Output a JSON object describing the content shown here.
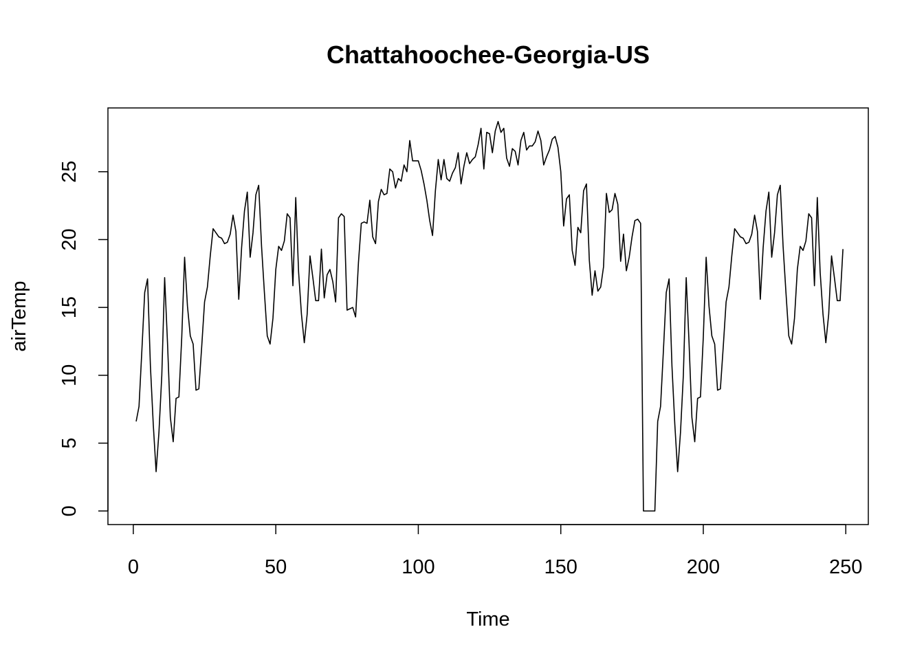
{
  "chart_data": {
    "type": "line",
    "title": "Chattahoochee-Georgia-US",
    "xlabel": "Time",
    "ylabel": "airTemp",
    "xlim": [
      -8.9,
      257.9
    ],
    "ylim": [
      -1.0,
      29.7
    ],
    "xticks": [
      0,
      50,
      100,
      150,
      200,
      250
    ],
    "yticks": [
      0,
      5,
      10,
      15,
      20,
      25
    ],
    "grid": false,
    "line_color": "#000000",
    "x_start": 1,
    "series": [
      {
        "values": [
          6.6,
          7.7,
          11.8,
          16.1,
          17.1,
          10.7,
          6.4,
          2.9,
          5.8,
          10.0,
          17.2,
          12.4,
          6.9,
          5.1,
          8.3,
          8.4,
          12.8,
          18.7,
          15.1,
          12.9,
          12.3,
          8.9,
          9.0,
          12.1,
          15.4,
          16.5,
          18.8,
          20.8,
          20.5,
          20.2,
          20.1,
          19.7,
          19.8,
          20.4,
          21.8,
          20.6,
          15.6,
          19.4,
          22.1,
          23.5,
          18.7,
          20.5,
          23.3,
          24.0,
          19.5,
          16.1,
          12.9,
          12.3,
          14.2,
          17.8,
          19.5,
          19.2,
          19.9,
          21.9,
          21.6,
          16.6,
          23.1,
          17.6,
          14.5,
          12.4,
          14.5,
          18.8,
          17.2,
          15.5,
          15.5,
          19.3,
          15.7,
          17.4,
          17.8,
          16.9,
          15.4,
          21.6,
          21.9,
          21.7,
          14.8,
          14.9,
          15.0,
          14.3,
          18.3,
          21.2,
          21.3,
          21.2,
          22.9,
          20.2,
          19.7,
          22.8,
          23.7,
          23.3,
          23.4,
          25.2,
          25.0,
          23.8,
          24.5,
          24.3,
          25.5,
          25.0,
          27.3,
          25.8,
          25.8,
          25.8,
          25.1,
          24.1,
          22.9,
          21.4,
          20.3,
          23.6,
          25.9,
          24.4,
          25.9,
          24.5,
          24.3,
          24.9,
          25.3,
          26.4,
          24.1,
          25.4,
          26.4,
          25.6,
          25.9,
          26.1,
          27.0,
          28.2,
          25.2,
          27.9,
          27.8,
          26.4,
          28.0,
          28.7,
          27.9,
          28.2,
          26.0,
          25.4,
          26.7,
          26.5,
          25.5,
          27.3,
          27.9,
          26.6,
          26.9,
          26.9,
          27.2,
          28.0,
          27.3,
          25.5,
          26.1,
          26.6,
          27.4,
          27.6,
          26.8,
          25.0,
          21.0,
          23.0,
          23.3,
          19.2,
          18.1,
          20.9,
          20.5,
          23.6,
          24.1,
          18.5,
          15.9,
          17.7,
          16.2,
          16.5,
          18.0,
          23.4,
          22.0,
          22.2,
          23.4,
          22.6,
          18.4,
          20.4,
          17.7,
          18.7,
          20.2,
          21.4,
          21.5,
          21.2,
          0.0,
          0.0,
          0.0,
          0.0,
          0.0,
          6.6,
          7.7,
          11.8,
          16.1,
          17.1,
          10.7,
          6.4,
          2.9,
          5.8,
          10.0,
          17.2,
          12.4,
          6.9,
          5.1,
          8.3,
          8.4,
          12.8,
          18.7,
          15.1,
          12.9,
          12.3,
          8.9,
          9.0,
          12.1,
          15.4,
          16.5,
          18.8,
          20.8,
          20.5,
          20.2,
          20.1,
          19.7,
          19.8,
          20.4,
          21.8,
          20.6,
          15.6,
          19.4,
          22.1,
          23.5,
          18.7,
          20.5,
          23.3,
          24.0,
          19.5,
          16.1,
          12.9,
          12.3,
          14.2,
          17.8,
          19.5,
          19.2,
          19.9,
          21.9,
          21.6,
          16.6,
          23.1,
          17.6,
          14.5,
          12.4,
          14.5,
          18.8,
          17.2,
          15.5,
          15.5,
          19.3
        ]
      }
    ]
  }
}
